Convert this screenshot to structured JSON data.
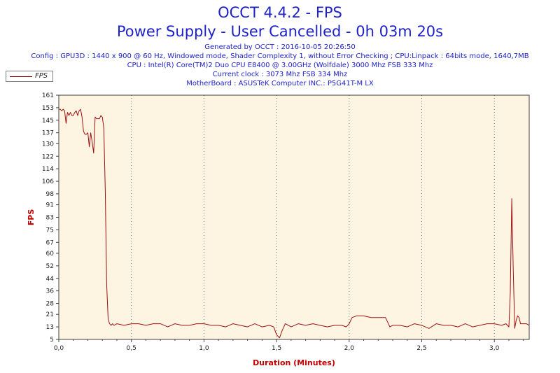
{
  "header": {
    "title": "OCCT 4.4.2 - FPS",
    "subtitle": "Power Supply - User Cancelled - 0h 03m 20s",
    "info_lines": [
      "Generated by OCCT : 2016-10-05 20:26:50",
      "Config : GPU3D : 1440 x 900 @ 60 Hz, Windowed mode, Shader Complexity 1, without Error Checking ; CPU:Linpack : 64bits mode, 1640,7MB",
      "CPU : Intel(R) Core(TM)2 Duo CPU E8400 @ 3.00GHz (Wolfdale) 3000 Mhz FSB 333 Mhz",
      "Current clock : 3073 Mhz FSB 334 Mhz",
      "MotherBoard : ASUSTeK Computer INC.: P5G41T-M LX"
    ]
  },
  "colors": {
    "plot_background": "#fdf5e2",
    "series_line": "#a01010",
    "title_text": "#1e22c8",
    "axis_title": "#c00000",
    "grid": "#707070"
  },
  "chart_data": {
    "type": "line",
    "xlabel": "Duration (Minutes)",
    "ylabel": "FPS",
    "xlim": [
      0,
      3.24
    ],
    "ylim": [
      5,
      161
    ],
    "x_ticks": [
      0.0,
      0.5,
      1.0,
      1.5,
      2.0,
      2.5,
      3.0
    ],
    "x_tick_labels": [
      "0,0",
      "0,5",
      "1,0",
      "1,5",
      "2,0",
      "2,5",
      "3,0"
    ],
    "y_ticks": [
      5,
      13,
      21,
      28,
      36,
      44,
      52,
      60,
      67,
      75,
      83,
      91,
      98,
      106,
      114,
      122,
      130,
      137,
      145,
      153,
      161
    ],
    "vertical_grid": true,
    "grid_x": [
      0.5,
      1.0,
      1.5,
      2.0,
      2.5,
      3.0
    ],
    "legend_position": "top-left",
    "series": [
      {
        "name": "FPS",
        "x": [
          0.0,
          0.01,
          0.02,
          0.03,
          0.04,
          0.05,
          0.06,
          0.07,
          0.08,
          0.09,
          0.1,
          0.11,
          0.12,
          0.13,
          0.14,
          0.15,
          0.16,
          0.17,
          0.18,
          0.19,
          0.2,
          0.21,
          0.22,
          0.23,
          0.24,
          0.25,
          0.26,
          0.27,
          0.28,
          0.29,
          0.3,
          0.31,
          0.32,
          0.33,
          0.34,
          0.35,
          0.36,
          0.37,
          0.38,
          0.4,
          0.45,
          0.5,
          0.55,
          0.6,
          0.65,
          0.7,
          0.75,
          0.8,
          0.85,
          0.9,
          0.95,
          1.0,
          1.05,
          1.1,
          1.15,
          1.2,
          1.25,
          1.3,
          1.35,
          1.4,
          1.45,
          1.48,
          1.5,
          1.52,
          1.54,
          1.56,
          1.6,
          1.65,
          1.7,
          1.75,
          1.8,
          1.85,
          1.9,
          1.95,
          1.98,
          2.0,
          2.02,
          2.05,
          2.1,
          2.15,
          2.2,
          2.25,
          2.28,
          2.3,
          2.35,
          2.4,
          2.45,
          2.5,
          2.55,
          2.6,
          2.65,
          2.7,
          2.75,
          2.8,
          2.85,
          2.9,
          2.95,
          3.0,
          3.05,
          3.08,
          3.1,
          3.11,
          3.12,
          3.13,
          3.14,
          3.15,
          3.16,
          3.17,
          3.18,
          3.2,
          3.22,
          3.24
        ],
        "y": [
          152,
          152,
          151,
          152,
          151,
          143,
          150,
          148,
          150,
          148,
          148,
          150,
          151,
          148,
          151,
          152,
          147,
          138,
          136,
          136,
          137,
          128,
          137,
          131,
          124,
          147,
          146,
          146,
          146,
          148,
          147,
          140,
          100,
          40,
          18,
          15,
          14,
          15,
          14,
          15,
          14,
          15,
          15,
          14,
          15,
          15,
          13,
          15,
          14,
          14,
          15,
          15,
          14,
          14,
          13,
          15,
          14,
          13,
          15,
          13,
          14,
          13,
          8,
          6,
          11,
          15,
          13,
          15,
          14,
          15,
          14,
          13,
          14,
          14,
          13,
          15,
          19,
          20,
          20,
          19,
          19,
          19,
          13,
          14,
          14,
          13,
          15,
          14,
          12,
          15,
          14,
          14,
          13,
          15,
          13,
          14,
          15,
          15,
          14,
          15,
          13,
          35,
          95,
          50,
          12,
          17,
          20,
          19,
          15,
          15,
          15,
          14
        ]
      }
    ]
  }
}
